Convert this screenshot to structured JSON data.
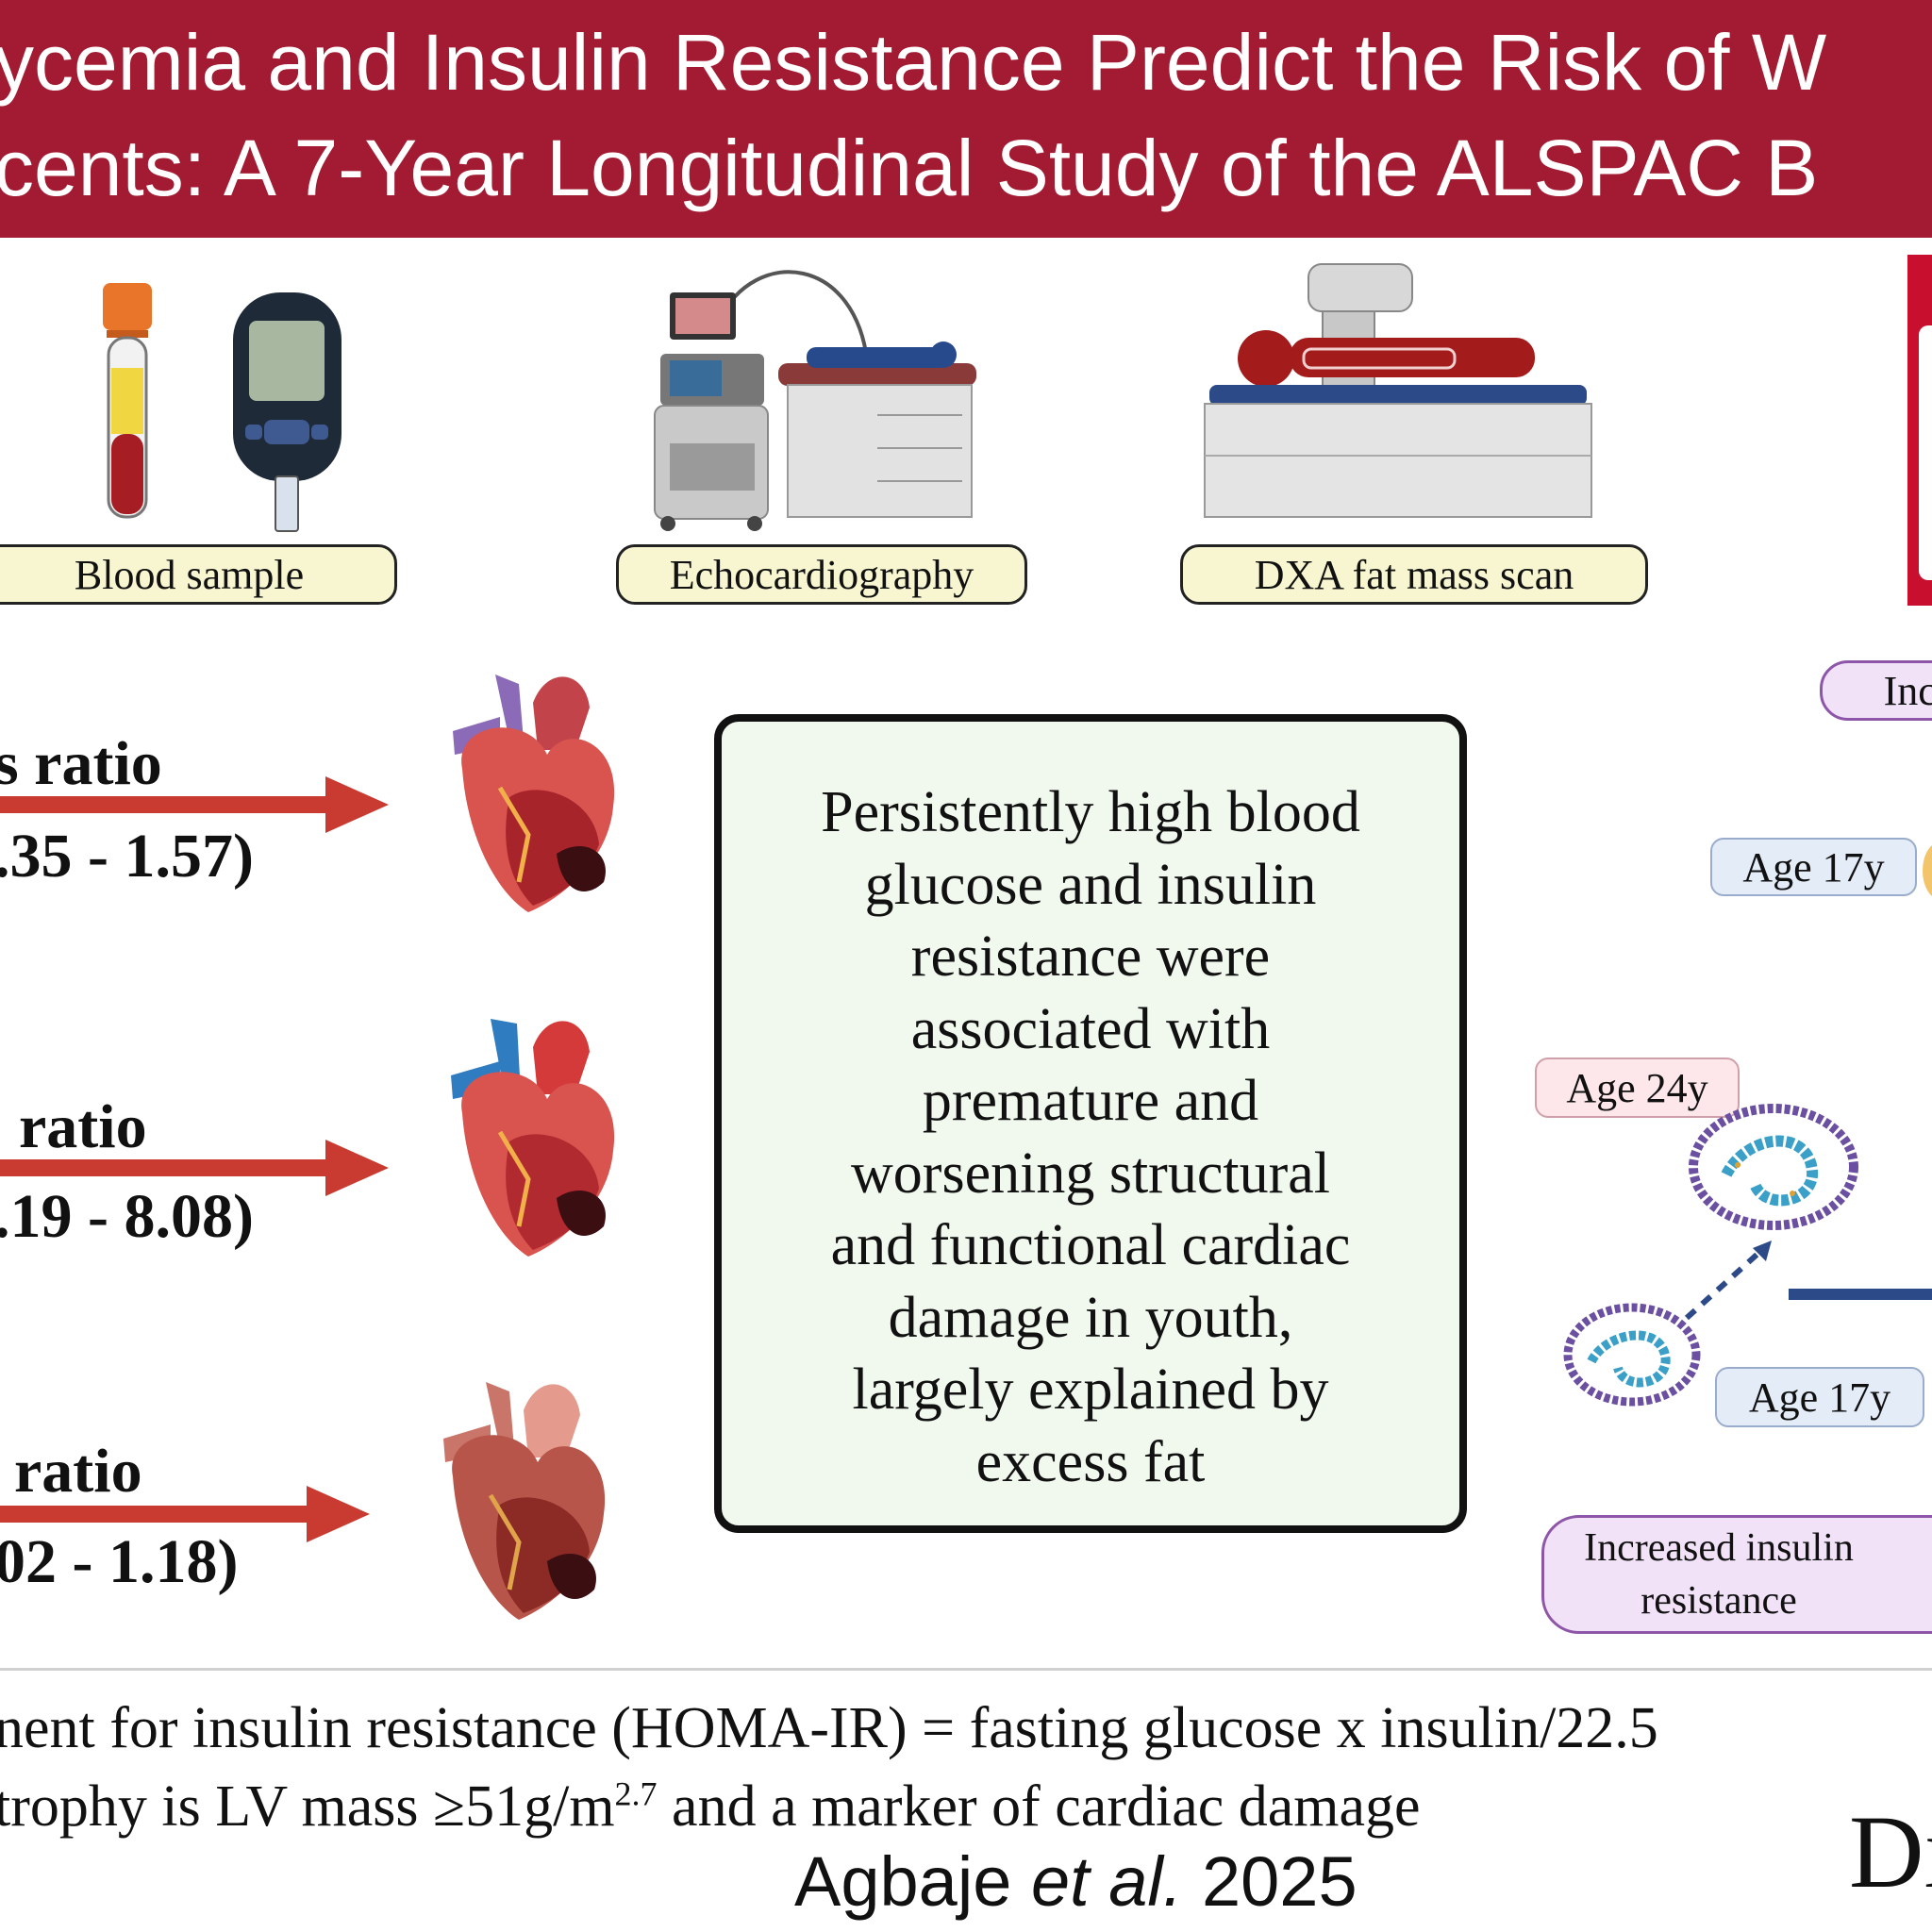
{
  "banner": {
    "line1": "ycemia and Insulin Resistance Predict the Risk of W",
    "line2": "cents: A 7-Year Longitudinal Study of the ALSPAC B"
  },
  "methods": [
    {
      "label": "Blood sample"
    },
    {
      "label": "Echocardiography"
    },
    {
      "label": "DXA fat mass scan"
    }
  ],
  "ratios": [
    {
      "title": "s ratio",
      "ci": ".35 - 1.57)"
    },
    {
      "title": "ratio",
      "ci": ".19 - 8.08)"
    },
    {
      "title": "ratio",
      "ci": "02 - 1.18)"
    }
  ],
  "summary": "Persistently high blood\nglucose and insulin\nresistance were\nassociated with\npremature and\nworsening structural\nand functional cardiac\ndamage in youth,\nlargely explained by\nexcess fat",
  "right_panel": {
    "increased_label": "Incr",
    "age_17_top": "Age 17y",
    "age_24": "Age 24y",
    "age_17_bottom": "Age 17y",
    "insulin_label_line1": "Increased insulin",
    "insulin_label_line2": "resistance"
  },
  "footnotes": {
    "line1": "nent for insulin resistance (HOMA-IR) = fasting glucose x insulin/22.5",
    "line2_prefix": "trophy is LV mass ≥51g/m",
    "line2_sup": "2.7",
    "line2_suffix": " and a marker of cardiac damage",
    "citation_author": "Agbaje ",
    "citation_etal": "et al.",
    "citation_year": " 2025",
    "journal_mark": "Di"
  },
  "colors": {
    "banner": "#a31b32",
    "arrow": "#c93a30",
    "summary_bg": "#f1f9ef",
    "pill_yellow": "#f8f6d0",
    "pill_blue": "#e4ecf8",
    "pill_pink": "#fde7ea",
    "pill_purple": "#f1e2f8"
  },
  "icons": [
    "blood-tube-icon",
    "glucometer-icon",
    "echocardiography-machine-icon",
    "dxa-scanner-icon",
    "heart-icon",
    "adipose-tissue-icon"
  ]
}
